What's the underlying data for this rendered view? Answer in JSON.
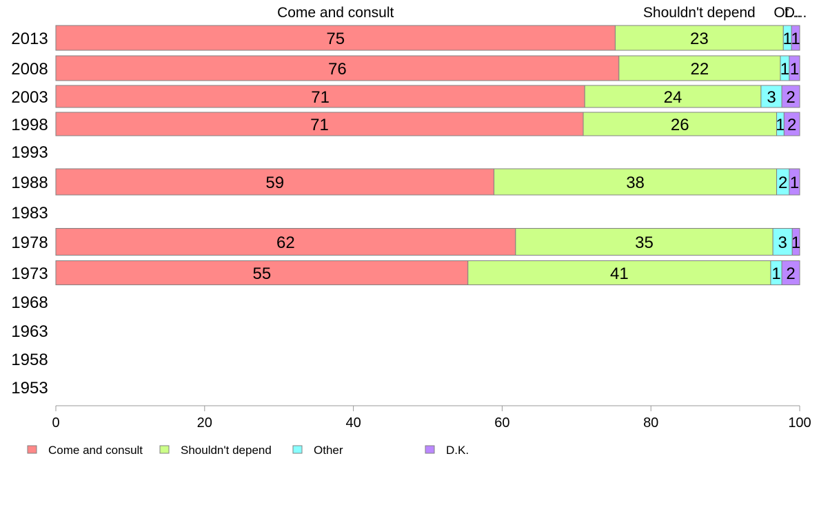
{
  "chart_data": {
    "type": "bar",
    "orientation": "horizontal",
    "stacked": true,
    "categories": [
      "2013",
      "2008",
      "2003",
      "1998",
      "1993",
      "1988",
      "1983",
      "1978",
      "1973",
      "1968",
      "1963",
      "1958",
      "1953"
    ],
    "series": [
      {
        "name": "Come and consult",
        "color": "#ff8888",
        "values": [
          75.2,
          75.7,
          71.1,
          70.9,
          null,
          58.9,
          null,
          61.8,
          55.4,
          null,
          null,
          null,
          null
        ],
        "labels": [
          "75",
          "76",
          "71",
          "71",
          null,
          "59",
          null,
          "62",
          "55",
          null,
          null,
          null,
          null
        ]
      },
      {
        "name": "Shouldn't depend",
        "color": "#ccff88",
        "values": [
          22.6,
          21.7,
          23.7,
          26.0,
          null,
          38.0,
          null,
          34.6,
          40.7,
          null,
          null,
          null,
          null
        ],
        "labels": [
          "23",
          "22",
          "24",
          "26",
          null,
          "38",
          null,
          "35",
          "41",
          null,
          null,
          null,
          null
        ]
      },
      {
        "name": "Other",
        "color": "#88ffff",
        "values": [
          1.1,
          1.2,
          2.8,
          1.0,
          null,
          1.7,
          null,
          2.6,
          1.5,
          null,
          null,
          null,
          null
        ],
        "labels": [
          "1",
          "1",
          "3",
          "1",
          null,
          "2",
          null,
          "3",
          "1",
          null,
          null,
          null,
          null
        ]
      },
      {
        "name": "D.K.",
        "color": "#bb88ff",
        "values": [
          1.1,
          1.4,
          2.4,
          2.1,
          null,
          1.4,
          null,
          1.0,
          2.4,
          null,
          null,
          null,
          null
        ],
        "labels": [
          "1",
          "1",
          "2",
          "2",
          null,
          "1",
          null,
          "1",
          "2",
          null,
          null,
          null,
          null
        ]
      }
    ],
    "top_labels": [
      "Come and consult",
      "Shouldn't depend",
      "Ot...",
      "D..."
    ],
    "xlim": [
      0,
      100
    ],
    "xticks": [
      0,
      20,
      40,
      60,
      80,
      100
    ],
    "grid": false,
    "legend": {
      "position": "bottom-left",
      "entries": [
        "Come and consult",
        "Shouldn't depend",
        "Other",
        "D.K."
      ]
    }
  }
}
